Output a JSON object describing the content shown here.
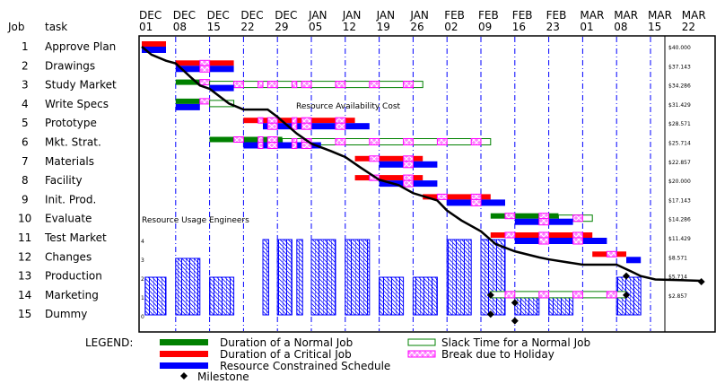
{
  "chart_data": {
    "type": "gantt",
    "header": {
      "job": "Job",
      "task": "task"
    },
    "dates": [
      [
        "DEC",
        "01"
      ],
      [
        "DEC",
        "08"
      ],
      [
        "DEC",
        "15"
      ],
      [
        "DEC",
        "22"
      ],
      [
        "DEC",
        "29"
      ],
      [
        "JAN",
        "05"
      ],
      [
        "JAN",
        "12"
      ],
      [
        "JAN",
        "19"
      ],
      [
        "JAN",
        "26"
      ],
      [
        "FEB",
        "02"
      ],
      [
        "FEB",
        "09"
      ],
      [
        "FEB",
        "16"
      ],
      [
        "FEB",
        "23"
      ],
      [
        "MAR",
        "01"
      ],
      [
        "MAR",
        "08"
      ],
      [
        "MAR",
        "15"
      ],
      [
        "MAR",
        "22"
      ]
    ],
    "days_per_tick": 7,
    "holidays": [
      [
        5,
        7
      ],
      [
        12,
        14
      ],
      [
        19,
        21
      ],
      [
        24,
        25
      ],
      [
        26,
        28
      ],
      [
        31,
        32
      ],
      [
        33,
        35
      ],
      [
        40,
        42
      ],
      [
        47,
        49
      ],
      [
        54,
        56
      ],
      [
        61,
        63
      ],
      [
        68,
        70
      ],
      [
        75,
        77
      ],
      [
        82,
        84
      ],
      [
        89,
        91
      ],
      [
        96,
        98
      ],
      [
        103,
        105
      ],
      [
        110,
        112
      ]
    ],
    "jobs": [
      {
        "num": "1",
        "task": "Approve Plan",
        "bars": [
          {
            "type": "critical",
            "start": 0,
            "end": 5
          }
        ],
        "resource": [
          0,
          5
        ]
      },
      {
        "num": "2",
        "task": "Drawings",
        "bars": [
          {
            "type": "critical",
            "start": 7,
            "end": 19
          }
        ],
        "resource": [
          7,
          19
        ]
      },
      {
        "num": "3",
        "task": "Study Market",
        "bars": [
          {
            "type": "normal",
            "start": 7,
            "end": 14
          },
          {
            "type": "slack",
            "start": 14,
            "end": 58
          }
        ],
        "resource": [
          14,
          19
        ]
      },
      {
        "num": "4",
        "task": "Write Specs",
        "bars": [
          {
            "type": "normal",
            "start": 7,
            "end": 14
          },
          {
            "type": "slack",
            "start": 14,
            "end": 19
          }
        ],
        "resource": [
          7,
          12
        ]
      },
      {
        "num": "5",
        "task": "Prototype",
        "bars": [
          {
            "type": "critical",
            "start": 21,
            "end": 44
          }
        ],
        "resource": [
          25,
          47
        ]
      },
      {
        "num": "6",
        "task": "Mkt. Strat.",
        "bars": [
          {
            "type": "normal",
            "start": 14,
            "end": 29
          },
          {
            "type": "slack",
            "start": 29,
            "end": 72
          }
        ],
        "resource": [
          21,
          37
        ]
      },
      {
        "num": "7",
        "task": "Materials",
        "bars": [
          {
            "type": "critical",
            "start": 44,
            "end": 58
          }
        ],
        "resource": [
          49,
          61
        ]
      },
      {
        "num": "8",
        "task": "Facility",
        "bars": [
          {
            "type": "critical",
            "start": 44,
            "end": 58
          }
        ],
        "resource": [
          49,
          61
        ]
      },
      {
        "num": "9",
        "task": "Init. Prod.",
        "bars": [
          {
            "type": "critical",
            "start": 58,
            "end": 72
          }
        ],
        "resource": [
          63,
          75
        ]
      },
      {
        "num": "10",
        "task": "Evaluate",
        "bars": [
          {
            "type": "normal",
            "start": 72,
            "end": 86
          },
          {
            "type": "slack",
            "start": 86,
            "end": 93
          }
        ],
        "resource": [
          77,
          89
        ]
      },
      {
        "num": "11",
        "task": "Test Market",
        "bars": [
          {
            "type": "critical",
            "start": 72,
            "end": 93
          }
        ],
        "resource": [
          77,
          96
        ]
      },
      {
        "num": "12",
        "task": "Changes",
        "bars": [
          {
            "type": "critical",
            "start": 93,
            "end": 100
          }
        ],
        "resource": [
          100,
          103
        ]
      },
      {
        "num": "13",
        "task": "Production",
        "bars": [],
        "resource": null
      },
      {
        "num": "14",
        "task": "Marketing",
        "bars": [
          {
            "type": "slack",
            "start": 72,
            "end": 100
          }
        ],
        "resource": null
      },
      {
        "num": "15",
        "task": "Dummy",
        "bars": [],
        "resource": null
      }
    ],
    "milestones": [
      {
        "row": 14,
        "day": 72
      },
      {
        "row": 15,
        "day": 72
      },
      {
        "row": 14.4,
        "day": 77
      },
      {
        "row": 15.35,
        "day": 77
      },
      {
        "row": 13,
        "day": 100
      },
      {
        "row": 14,
        "day": 100
      },
      {
        "row": 13.3,
        "day": 115.5
      }
    ],
    "cost_axis": {
      "title": "Resource Availability Cost",
      "labels": [
        "$40.000",
        "$37.143",
        "$34.286",
        "$31.429",
        "$28.571",
        "$25.714",
        "$22.857",
        "$20.000",
        "$17.143",
        "$14.286",
        "$11.429",
        "$8.571",
        "$5.714",
        "$2.857"
      ],
      "max": 40,
      "step": 2.857
    },
    "cost_curve": [
      [
        0,
        40
      ],
      [
        2,
        38.8
      ],
      [
        5,
        37.9
      ],
      [
        7,
        37.5
      ],
      [
        10,
        35.5
      ],
      [
        12,
        34.2
      ],
      [
        14,
        33.7
      ],
      [
        18,
        31.5
      ],
      [
        21,
        30.6
      ],
      [
        26,
        30.6
      ],
      [
        28,
        29.5
      ],
      [
        32,
        27
      ],
      [
        35,
        25.5
      ],
      [
        39,
        24.4
      ],
      [
        42,
        23.5
      ],
      [
        45,
        22
      ],
      [
        49,
        20.1
      ],
      [
        53,
        19.3
      ],
      [
        56,
        18.1
      ],
      [
        61,
        17
      ],
      [
        63,
        15.5
      ],
      [
        66,
        14
      ],
      [
        70,
        12.4
      ],
      [
        73,
        10.5
      ],
      [
        77,
        9.4
      ],
      [
        82,
        8.5
      ],
      [
        84,
        8.2
      ],
      [
        91,
        7.4
      ],
      [
        98,
        7.4
      ],
      [
        101,
        6.4
      ],
      [
        103,
        5.7
      ],
      [
        106,
        5.2
      ],
      [
        115.5,
        5.0
      ]
    ],
    "usage": {
      "title": "Resource Usage Engineers",
      "ticks": [
        "0",
        "1",
        "2",
        "3",
        "4"
      ],
      "bars": [
        [
          0.7,
          5,
          2
        ],
        [
          7,
          12,
          3
        ],
        [
          14,
          19,
          2
        ],
        [
          25,
          26.2,
          4
        ],
        [
          28,
          31,
          4
        ],
        [
          32,
          33.2,
          4
        ],
        [
          35,
          40,
          4
        ],
        [
          42,
          47,
          4
        ],
        [
          49,
          54,
          2
        ],
        [
          56,
          61,
          2
        ],
        [
          63,
          68,
          4
        ],
        [
          70,
          75,
          4
        ],
        [
          77,
          82,
          1
        ],
        [
          84,
          89,
          1
        ],
        [
          98,
          103,
          2
        ]
      ]
    },
    "legend": {
      "title": "LEGEND:",
      "normal": "Duration of a Normal Job",
      "critical": "Duration of a Critical Job",
      "resource": "Resource Constrained Schedule",
      "milestone": "Milestone",
      "slack": "Slack Time for a Normal Job",
      "holiday": "Break due to Holiday"
    },
    "colors": {
      "normal": "#008000",
      "critical": "#ff0000",
      "resource": "#0000ff",
      "holiday": "#ff00ff",
      "grid": "#0000ff"
    }
  }
}
